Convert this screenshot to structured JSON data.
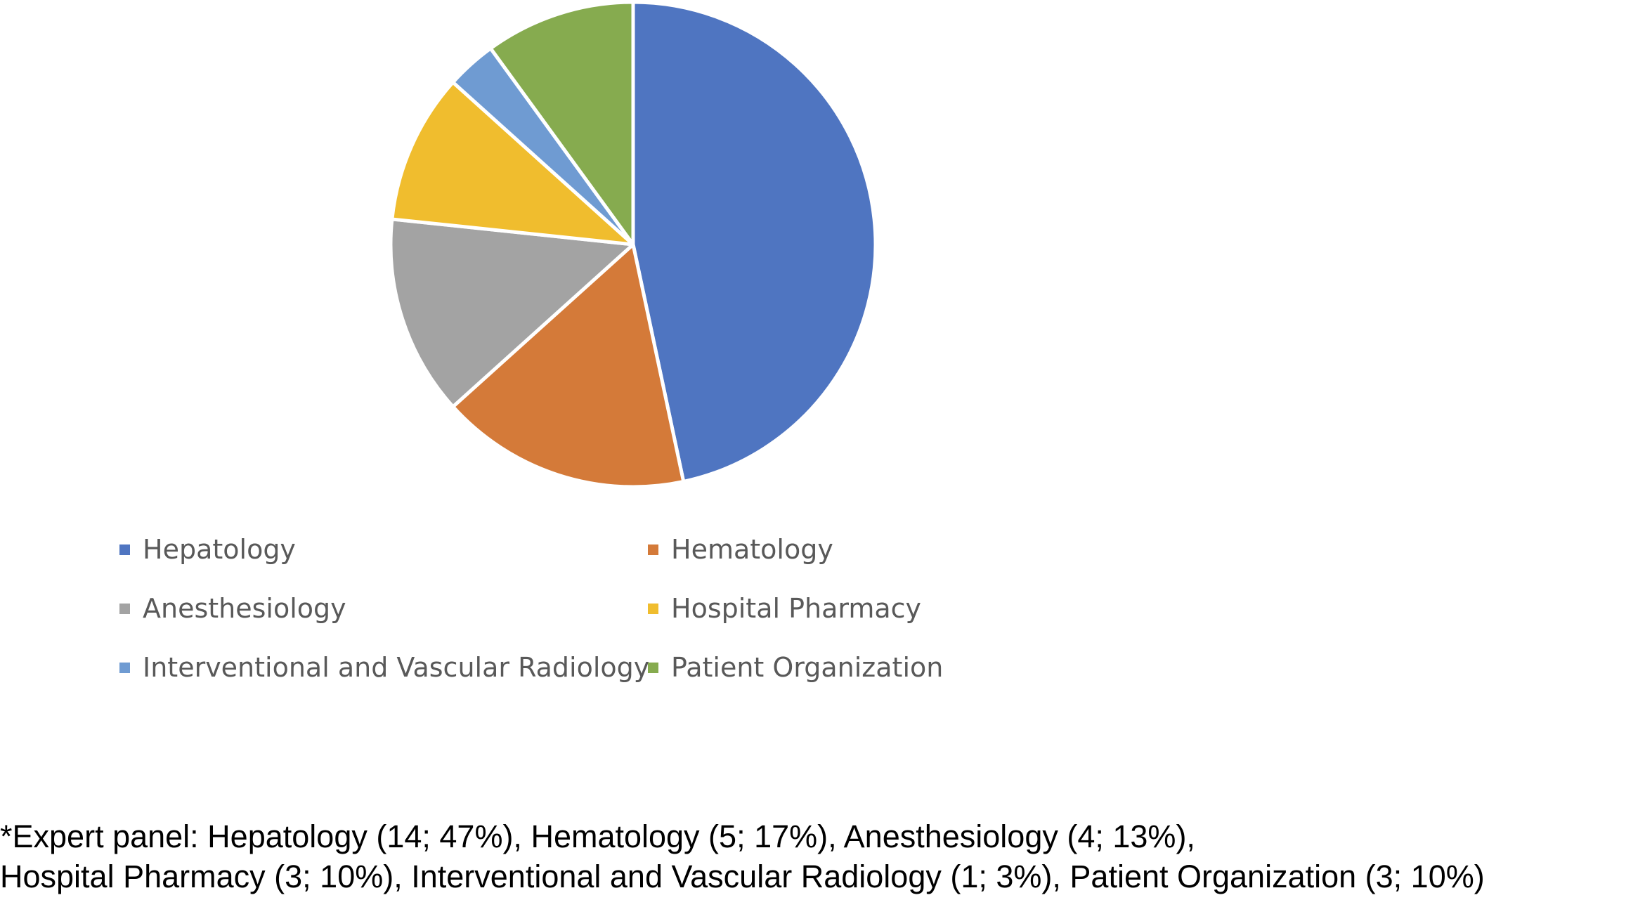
{
  "chart_data": {
    "type": "pie",
    "title": "",
    "start_angle_deg": 0,
    "direction": "clockwise",
    "slices": [
      {
        "label": "Hepatology",
        "value": 14,
        "percent": 47,
        "color": "#4f75c1"
      },
      {
        "label": "Hematology",
        "value": 5,
        "percent": 17,
        "color": "#d47a39"
      },
      {
        "label": "Anesthesiology",
        "value": 4,
        "percent": 13,
        "color": "#a3a3a3"
      },
      {
        "label": "Hospital Pharmacy",
        "value": 3,
        "percent": 10,
        "color": "#f0bd2e"
      },
      {
        "label": "Interventional and Vascular Radiology",
        "value": 1,
        "percent": 3,
        "color": "#6f9bd2"
      },
      {
        "label": "Patient Organization",
        "value": 3,
        "percent": 10,
        "color": "#86ab4f"
      }
    ],
    "legend": {
      "placement": "bottom",
      "columns": 2
    }
  },
  "footnote": {
    "line1": "*Expert panel: Hepatology (14; 47%), Hematology (5; 17%), Anesthesiology (4; 13%),",
    "line2": "Hospital Pharmacy (3; 10%), Interventional and Vascular Radiology (1; 3%), Patient Organization (3; 10%)"
  }
}
